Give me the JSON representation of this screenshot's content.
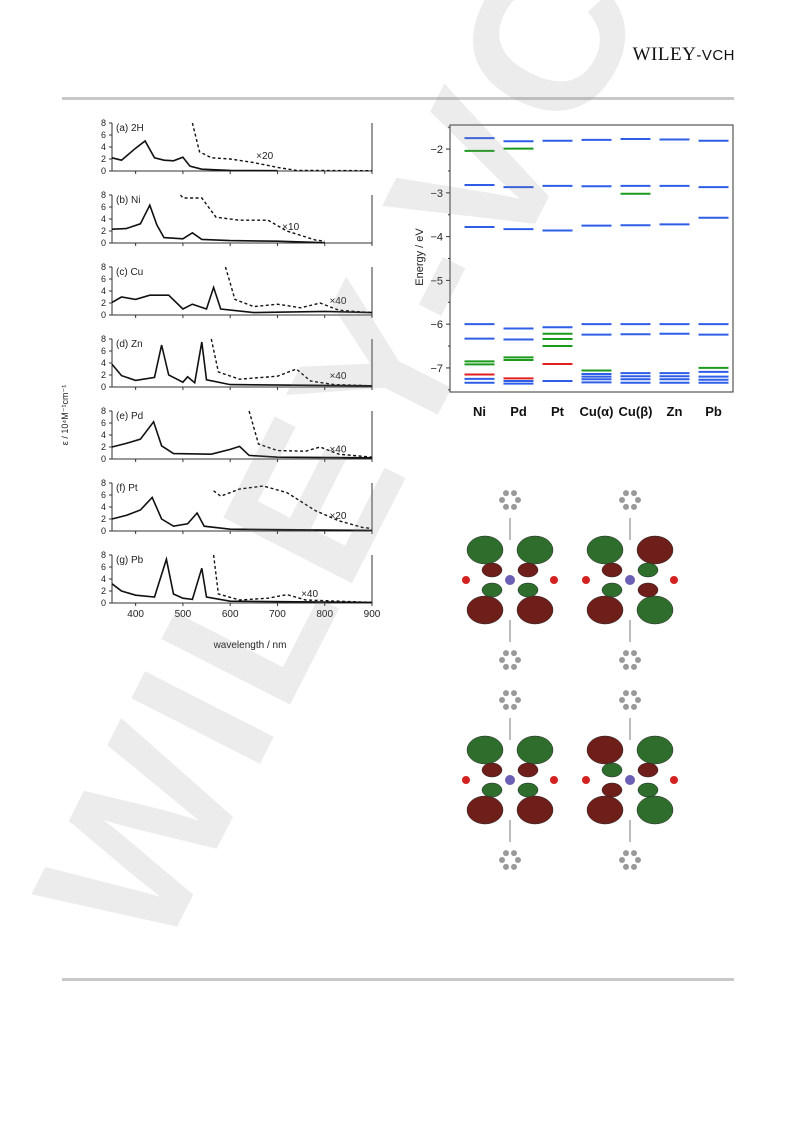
{
  "header": {
    "publisher_main": "WILEY",
    "publisher_suffix": "-VCH"
  },
  "watermark": {
    "text": "WILEY-VCH"
  },
  "spectra": {
    "ylabel": "ε / 10⁴M⁻¹cm⁻¹",
    "xlabel": "wavelength / nm",
    "x_ticks": [
      "400",
      "500",
      "600",
      "700",
      "800",
      "900"
    ],
    "y_ticks": [
      "0",
      "2",
      "4",
      "6",
      "8"
    ],
    "panels": [
      {
        "label": "(a) 2H",
        "factor": "×20"
      },
      {
        "label": "(b) Ni",
        "factor": "×10"
      },
      {
        "label": "(c) Cu",
        "factor": "×40"
      },
      {
        "label": "(d) Zn",
        "factor": "×40"
      },
      {
        "label": "(e) Pd",
        "factor": "×40"
      },
      {
        "label": "(f) Pt",
        "factor": "×20"
      },
      {
        "label": "(g) Pb",
        "factor": "×40"
      }
    ]
  },
  "chart_data": {
    "type": "scatter",
    "ylabel": "Energy / eV",
    "ylim": [
      -7.55,
      -1.45
    ],
    "y_ticks": [
      -2,
      -3,
      -4,
      -5,
      -6,
      -7
    ],
    "categories": [
      "Ni",
      "Pd",
      "Pt",
      "Cu(α)",
      "Cu(β)",
      "Zn",
      "Pb"
    ],
    "colors": {
      "blue": "#2f5ee6",
      "green": "#1c9a1c",
      "red": "#e01f1f"
    },
    "levels": [
      {
        "cat": 0,
        "e": [
          -1.75,
          -2.82,
          -3.78,
          -6.0,
          -6.33,
          -7.25,
          -7.34
        ],
        "c": "blue"
      },
      {
        "cat": 0,
        "e": [
          -2.04,
          -6.85,
          -6.92
        ],
        "c": "green"
      },
      {
        "cat": 0,
        "e": [
          -7.15
        ],
        "c": "red"
      },
      {
        "cat": 1,
        "e": [
          -1.82,
          -2.87,
          -3.83,
          -6.1,
          -6.35,
          -7.3,
          -7.36
        ],
        "c": "blue"
      },
      {
        "cat": 1,
        "e": [
          -1.99,
          -6.76,
          -6.82
        ],
        "c": "green"
      },
      {
        "cat": 1,
        "e": [
          -7.24
        ],
        "c": "red"
      },
      {
        "cat": 2,
        "e": [
          -1.81,
          -2.84,
          -3.86,
          -6.07,
          -7.3
        ],
        "c": "blue"
      },
      {
        "cat": 2,
        "e": [
          -6.22,
          -6.34,
          -6.5
        ],
        "c": "green"
      },
      {
        "cat": 2,
        "e": [
          -6.91
        ],
        "c": "red"
      },
      {
        "cat": 3,
        "e": [
          -1.79,
          -2.85,
          -3.75,
          -6.0,
          -6.24,
          -7.14,
          -7.2,
          -7.26,
          -7.33
        ],
        "c": "blue"
      },
      {
        "cat": 3,
        "e": [
          -7.06
        ],
        "c": "green"
      },
      {
        "cat": 4,
        "e": [
          -1.77,
          -2.84,
          -3.74,
          -6.0,
          -6.23,
          -7.12,
          -7.19,
          -7.26,
          -7.34
        ],
        "c": "blue"
      },
      {
        "cat": 4,
        "e": [
          -3.02
        ],
        "c": "green"
      },
      {
        "cat": 5,
        "e": [
          -1.78,
          -2.84,
          -3.72,
          -6.0,
          -6.22,
          -7.12,
          -7.19,
          -7.26,
          -7.34
        ],
        "c": "blue"
      },
      {
        "cat": 6,
        "e": [
          -1.81,
          -2.87,
          -3.57,
          -6.0,
          -6.24,
          -7.09,
          -7.2,
          -7.27,
          -7.34
        ],
        "c": "blue"
      },
      {
        "cat": 6,
        "e": [
          -7.0
        ],
        "c": "green"
      }
    ]
  }
}
